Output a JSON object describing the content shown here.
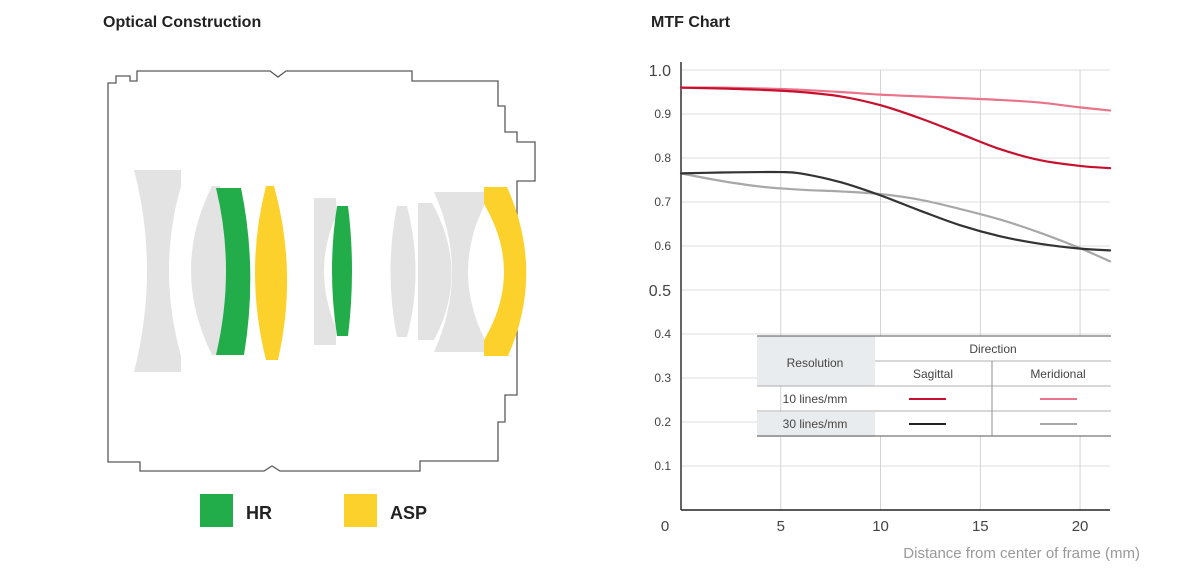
{
  "optical": {
    "title": "Optical Construction",
    "legend": [
      {
        "label": "HR",
        "color": "#22ac4a"
      },
      {
        "label": "ASP",
        "color": "#fdd12b"
      }
    ],
    "element_color": "#e3e3e3",
    "outline_color": "#5a5a5a"
  },
  "mtf": {
    "title": "MTF Chart",
    "xlabel": "Distance from center of frame (mm)",
    "table": {
      "row_header": "Resolution",
      "group_header": "Direction",
      "col_sagittal": "Sagittal",
      "col_meridional": "Meridional",
      "row_10": "10 lines/mm",
      "row_30": "30 lines/mm"
    }
  },
  "chart_data": {
    "type": "line",
    "title": "MTF Chart",
    "xlabel": "Distance from center of frame (mm)",
    "ylabel": "",
    "xlim": [
      0,
      21.5
    ],
    "ylim": [
      0,
      1.0
    ],
    "xticks": [
      "0",
      "5",
      "10",
      "15",
      "20"
    ],
    "yticks": [
      "0.1",
      "0.2",
      "0.3",
      "0.4",
      "0.5",
      "0.6",
      "0.7",
      "0.8",
      "0.9",
      "1.0"
    ],
    "grid": true,
    "series": [
      {
        "name": "10 lines/mm Sagittal",
        "color": "#c8102e",
        "x": [
          0,
          2,
          4,
          6,
          8,
          10,
          12,
          14,
          16,
          18,
          20,
          21.5
        ],
        "y": [
          0.96,
          0.958,
          0.955,
          0.95,
          0.94,
          0.92,
          0.89,
          0.855,
          0.82,
          0.795,
          0.782,
          0.777
        ]
      },
      {
        "name": "10 lines/mm Meridional",
        "color": "#e8738a",
        "x": [
          0,
          2,
          4,
          6,
          8,
          10,
          12,
          14,
          16,
          18,
          20,
          21.5
        ],
        "y": [
          0.96,
          0.96,
          0.958,
          0.955,
          0.95,
          0.944,
          0.94,
          0.936,
          0.932,
          0.926,
          0.915,
          0.908
        ]
      },
      {
        "name": "30 lines/mm Sagittal",
        "color": "#333333",
        "x": [
          0,
          2,
          4,
          5,
          6,
          8,
          10,
          12,
          14,
          16,
          18,
          20,
          21.5
        ],
        "y": [
          0.765,
          0.767,
          0.768,
          0.768,
          0.765,
          0.745,
          0.715,
          0.68,
          0.647,
          0.622,
          0.605,
          0.594,
          0.59
        ]
      },
      {
        "name": "30 lines/mm Meridional",
        "color": "#a8a8a8",
        "x": [
          0,
          2,
          4,
          6,
          8,
          10,
          12,
          14,
          16,
          18,
          20,
          21.5
        ],
        "y": [
          0.765,
          0.748,
          0.735,
          0.728,
          0.724,
          0.718,
          0.705,
          0.684,
          0.66,
          0.63,
          0.595,
          0.565
        ]
      }
    ]
  }
}
